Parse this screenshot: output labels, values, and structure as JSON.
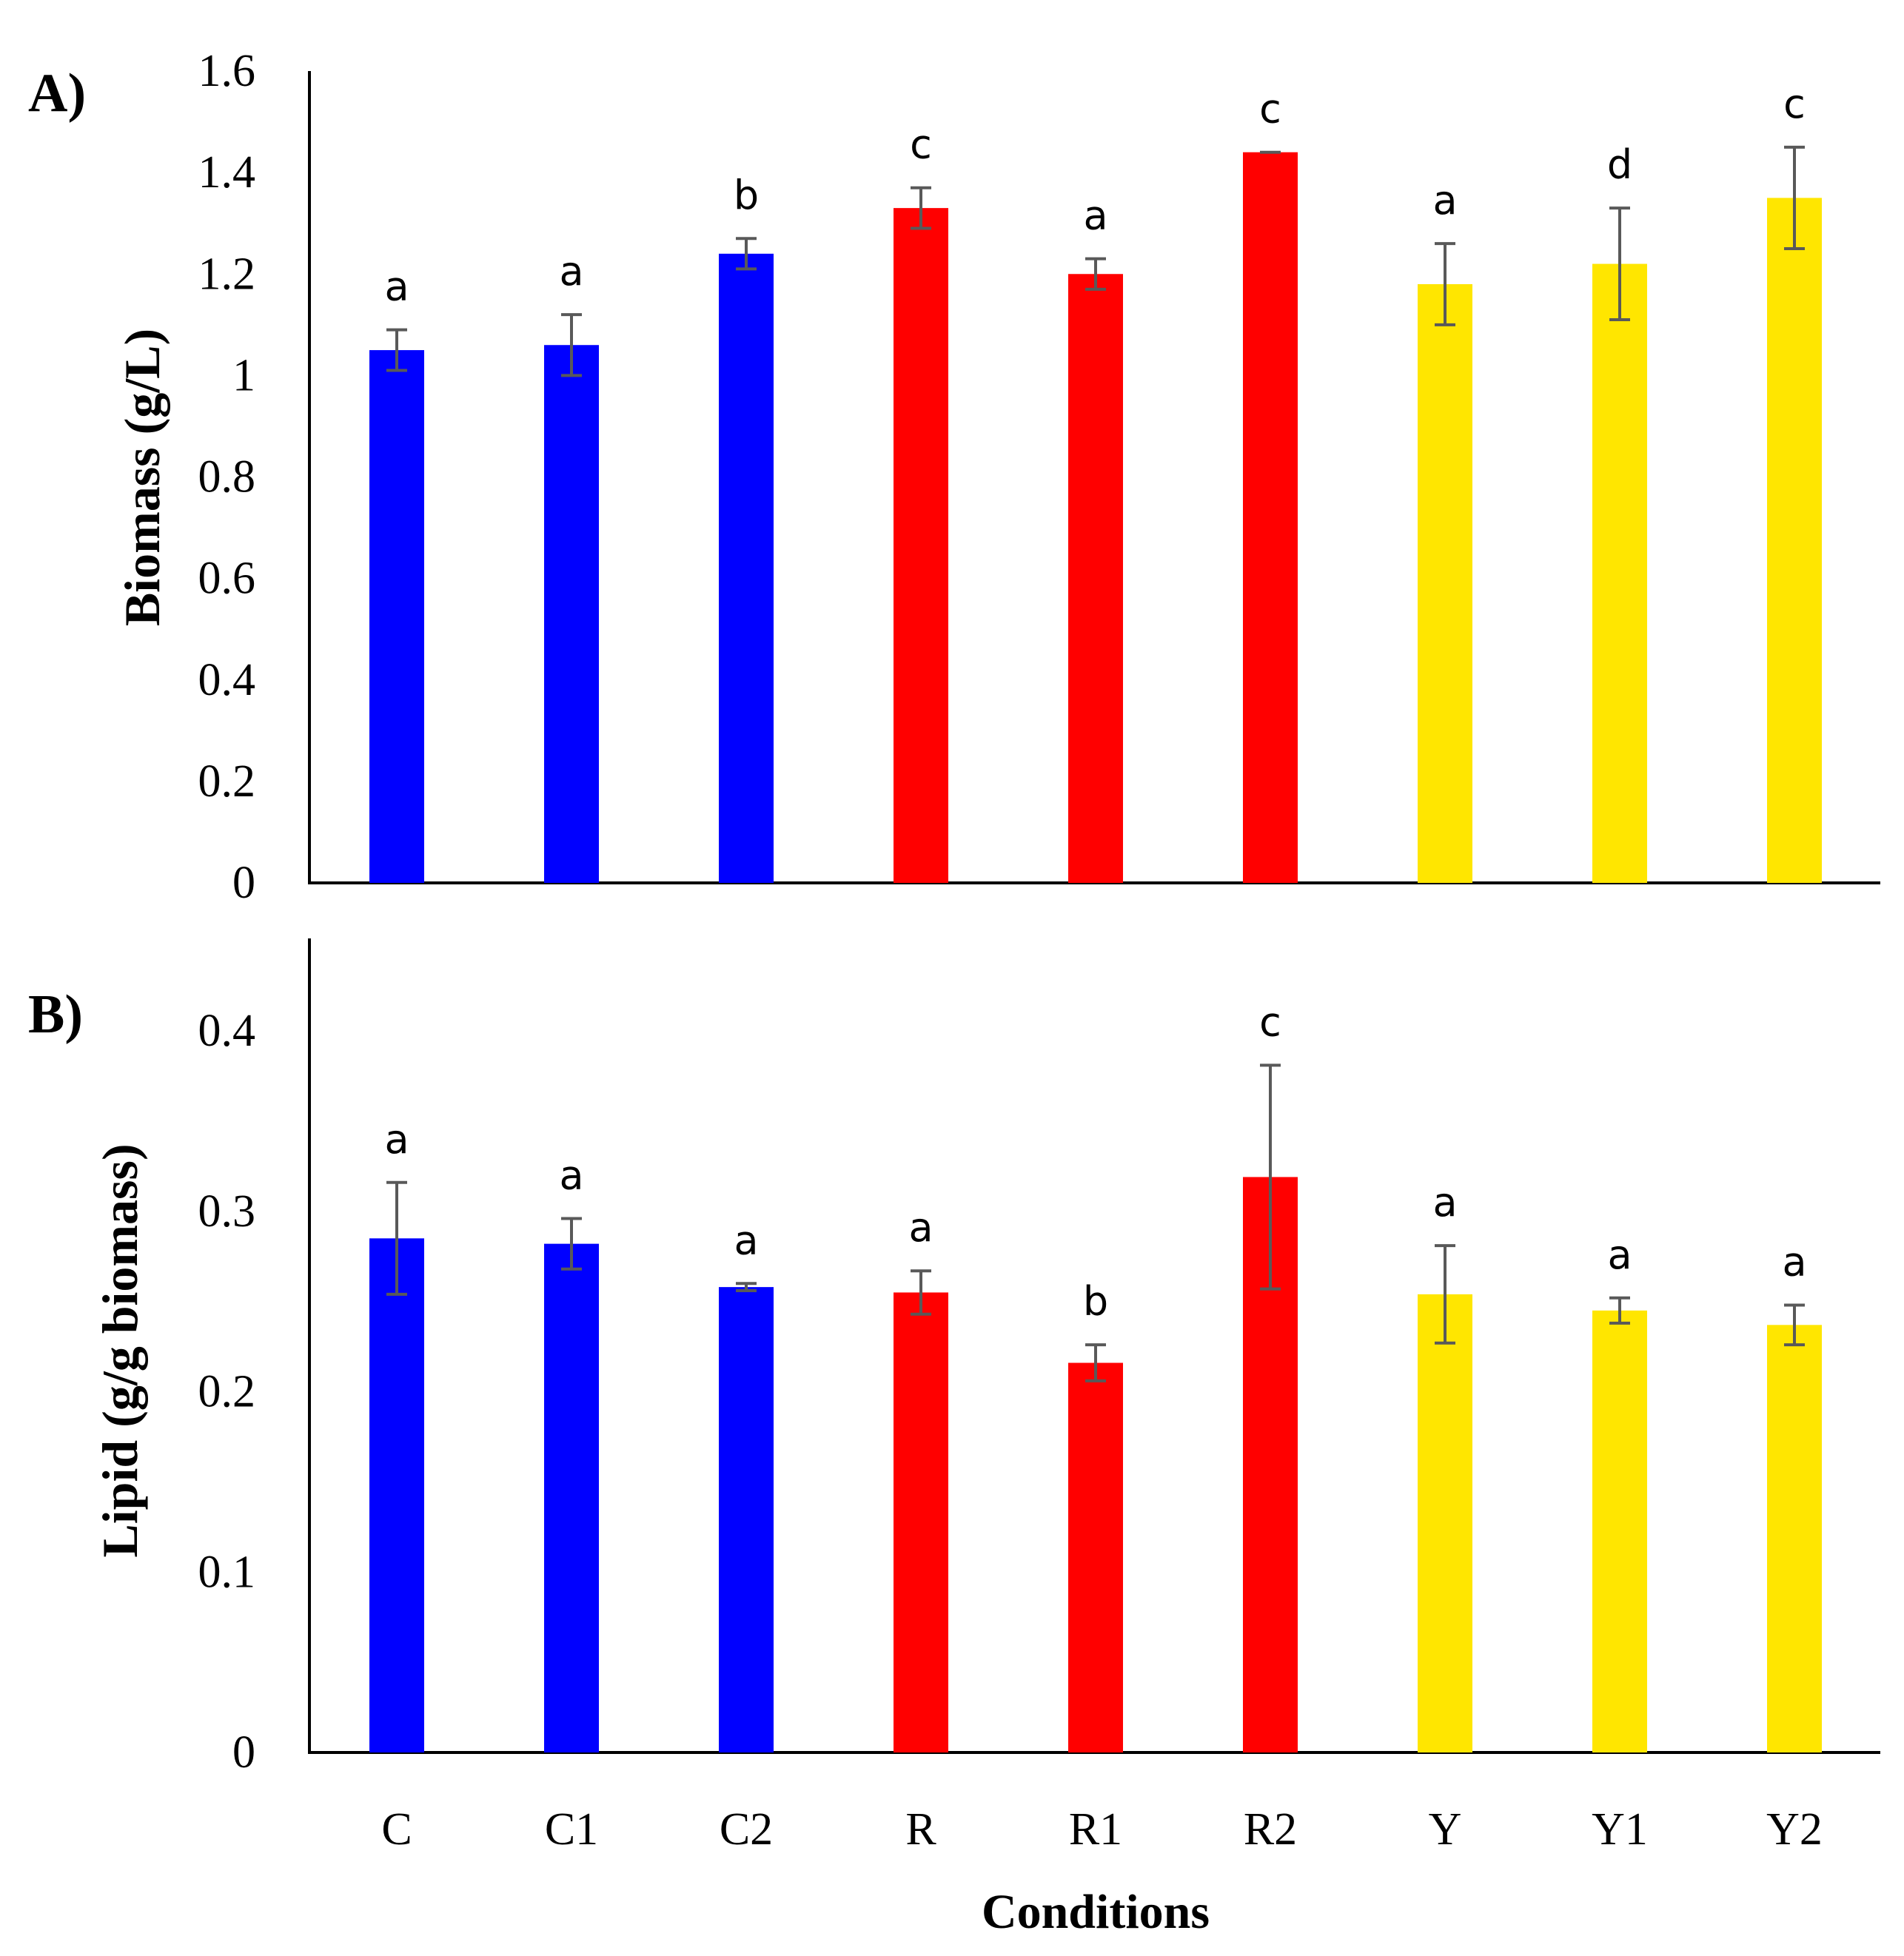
{
  "chart_data": [
    {
      "type": "bar",
      "panel_label": "A)",
      "title": "",
      "xlabel": "",
      "ylabel": "Biomass (g/L)",
      "ylim": [
        0,
        1.6
      ],
      "yticks": [
        "0",
        "0.2",
        "0.4",
        "0.6",
        "0.8",
        "1",
        "1.2",
        "1.4",
        "1.6"
      ],
      "ytick_values": [
        0,
        0.2,
        0.4,
        0.6,
        0.8,
        1.0,
        1.2,
        1.4,
        1.6
      ],
      "categories": [
        "C",
        "C1",
        "C2",
        "R",
        "R1",
        "R2",
        "Y",
        "Y1",
        "Y2"
      ],
      "values": [
        1.05,
        1.06,
        1.24,
        1.33,
        1.2,
        1.44,
        1.18,
        1.22,
        1.35
      ],
      "errors": [
        0.04,
        0.06,
        0.03,
        0.04,
        0.03,
        0.0,
        0.08,
        0.11,
        0.1
      ],
      "sig_letters": [
        "a",
        "a",
        "b",
        "c",
        "a",
        "c",
        "a",
        "d",
        "c"
      ],
      "colors": [
        "#0000ff",
        "#0000ff",
        "#0000ff",
        "#ff0000",
        "#ff0000",
        "#ff0000",
        "#ffe600",
        "#ffe600",
        "#ffe600"
      ],
      "grid": false,
      "legend": "none"
    },
    {
      "type": "bar",
      "panel_label": "B)",
      "title": "",
      "xlabel": "Conditions",
      "ylabel": "Lipid (g/g biomass)",
      "ylim": [
        0,
        0.45
      ],
      "yticks": [
        "0",
        "0.1",
        "0.2",
        "0.3",
        "0.4"
      ],
      "ytick_values": [
        0,
        0.1,
        0.2,
        0.3,
        0.4
      ],
      "categories": [
        "C",
        "C1",
        "C2",
        "R",
        "R1",
        "R2",
        "Y",
        "Y1",
        "Y2"
      ],
      "values": [
        0.285,
        0.282,
        0.258,
        0.255,
        0.216,
        0.319,
        0.254,
        0.245,
        0.237
      ],
      "errors": [
        0.031,
        0.014,
        0.002,
        0.012,
        0.01,
        0.062,
        0.027,
        0.007,
        0.011
      ],
      "sig_letters": [
        "a",
        "a",
        "a",
        "a",
        "b",
        "c",
        "a",
        "a",
        "a"
      ],
      "colors": [
        "#0000ff",
        "#0000ff",
        "#0000ff",
        "#ff0000",
        "#ff0000",
        "#ff0000",
        "#ffe600",
        "#ffe600",
        "#ffe600"
      ],
      "grid": false,
      "legend": "none"
    }
  ]
}
